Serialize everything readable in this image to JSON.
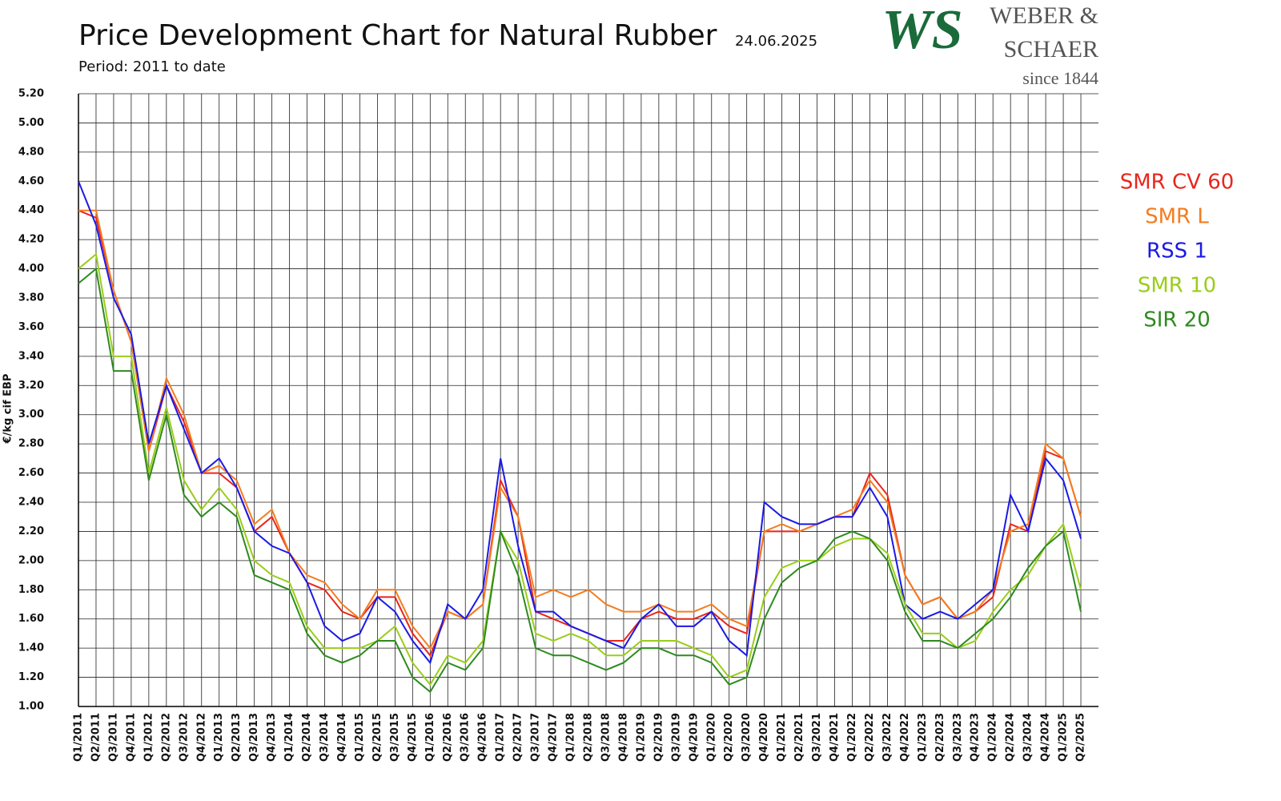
{
  "chart_data": {
    "type": "line",
    "title": "Price Development Chart for Natural Rubber",
    "date": "24.06.2025",
    "subtitle": "Period: 2011 to date",
    "y_label": "€/kg cif EBP",
    "logo": {
      "mark": "WS",
      "line1": "WEBER &",
      "line2": "SCHAER",
      "line3": "since 1844"
    },
    "grid": true,
    "legend_position": "right",
    "categories": [
      "Q1/2011",
      "Q2/2011",
      "Q3/2011",
      "Q4/2011",
      "Q1/2012",
      "Q2/2012",
      "Q3/2012",
      "Q4/2012",
      "Q1/2013",
      "Q2/2013",
      "Q3/2013",
      "Q4/2013",
      "Q1/2014",
      "Q2/2014",
      "Q3/2014",
      "Q4/2014",
      "Q1/2015",
      "Q2/2015",
      "Q3/2015",
      "Q4/2015",
      "Q1/2016",
      "Q2/2016",
      "Q3/2016",
      "Q4/2016",
      "Q1/2017",
      "Q2/2017",
      "Q3/2017",
      "Q4/2017",
      "Q1/2018",
      "Q2/2018",
      "Q3/2018",
      "Q4/2018",
      "Q1/2019",
      "Q2/2019",
      "Q3/2019",
      "Q4/2019",
      "Q1/2020",
      "Q2/2020",
      "Q3/2020",
      "Q4/2020",
      "Q1/2021",
      "Q2/2021",
      "Q3/2021",
      "Q4/2021",
      "Q1/2022",
      "Q2/2022",
      "Q3/2022",
      "Q4/2022",
      "Q1/2023",
      "Q2/2023",
      "Q3/2023",
      "Q4/2023",
      "Q1/2024",
      "Q2/2024",
      "Q3/2024",
      "Q4/2024",
      "Q1/2025",
      "Q2/2025"
    ],
    "ylim": [
      1.0,
      5.2
    ],
    "yticks": [
      {
        "value": 1.0,
        "label": "1.00"
      },
      {
        "value": 1.2,
        "label": "1.20"
      },
      {
        "value": 1.4,
        "label": "1.40"
      },
      {
        "value": 1.6,
        "label": "1.60"
      },
      {
        "value": 1.8,
        "label": "1.80"
      },
      {
        "value": 2.0,
        "label": "2.00"
      },
      {
        "value": 2.2,
        "label": "2.20"
      },
      {
        "value": 2.4,
        "label": "2.40"
      },
      {
        "value": 2.6,
        "label": "2.60"
      },
      {
        "value": 2.8,
        "label": "2.80"
      },
      {
        "value": 3.0,
        "label": "3.00"
      },
      {
        "value": 3.2,
        "label": "3.20"
      },
      {
        "value": 3.4,
        "label": "3.40"
      },
      {
        "value": 3.6,
        "label": "3.60"
      },
      {
        "value": 3.8,
        "label": "3.80"
      },
      {
        "value": 4.0,
        "label": "4.00"
      },
      {
        "value": 4.2,
        "label": "4.20"
      },
      {
        "value": 4.4,
        "label": "4.40"
      },
      {
        "value": 4.6,
        "label": "4.60"
      },
      {
        "value": 4.8,
        "label": "4.80"
      },
      {
        "value": 5.0,
        "label": "5.00"
      },
      {
        "value": 5.2,
        "label": "5.20"
      }
    ],
    "series": [
      {
        "name": "SMR CV 60",
        "color": "#e8261c",
        "values": [
          4.4,
          4.35,
          3.85,
          3.5,
          2.75,
          3.2,
          2.95,
          2.6,
          2.6,
          2.5,
          2.2,
          2.3,
          2.05,
          1.85,
          1.8,
          1.65,
          1.6,
          1.75,
          1.75,
          1.5,
          1.35,
          1.65,
          1.6,
          1.7,
          2.55,
          2.3,
          1.65,
          1.6,
          1.55,
          1.5,
          1.45,
          1.45,
          1.6,
          1.65,
          1.6,
          1.6,
          1.65,
          1.55,
          1.5,
          2.2,
          2.2,
          2.2,
          2.25,
          2.3,
          2.3,
          2.6,
          2.45,
          1.9,
          1.7,
          1.75,
          1.6,
          1.65,
          1.75,
          2.25,
          2.2,
          2.75,
          2.7,
          2.3
        ]
      },
      {
        "name": "SMR L",
        "color": "#f57c1f",
        "values": [
          4.4,
          4.4,
          3.85,
          3.5,
          2.75,
          3.25,
          3.0,
          2.6,
          2.65,
          2.55,
          2.25,
          2.35,
          2.05,
          1.9,
          1.85,
          1.7,
          1.6,
          1.8,
          1.8,
          1.55,
          1.4,
          1.65,
          1.6,
          1.7,
          2.5,
          2.3,
          1.75,
          1.8,
          1.75,
          1.8,
          1.7,
          1.65,
          1.65,
          1.7,
          1.65,
          1.65,
          1.7,
          1.6,
          1.55,
          2.2,
          2.25,
          2.2,
          2.25,
          2.3,
          2.35,
          2.55,
          2.4,
          1.9,
          1.7,
          1.75,
          1.6,
          1.65,
          1.8,
          2.2,
          2.25,
          2.8,
          2.7,
          2.3
        ]
      },
      {
        "name": "RSS 1",
        "color": "#1a1ae6",
        "values": [
          4.6,
          4.3,
          3.8,
          3.55,
          2.8,
          3.2,
          2.9,
          2.6,
          2.7,
          2.5,
          2.2,
          2.1,
          2.05,
          1.85,
          1.55,
          1.45,
          1.5,
          1.75,
          1.65,
          1.45,
          1.3,
          1.7,
          1.6,
          1.8,
          2.7,
          2.1,
          1.65,
          1.65,
          1.55,
          1.5,
          1.45,
          1.4,
          1.6,
          1.7,
          1.55,
          1.55,
          1.65,
          1.45,
          1.35,
          2.4,
          2.3,
          2.25,
          2.25,
          2.3,
          2.3,
          2.5,
          2.3,
          1.7,
          1.6,
          1.65,
          1.6,
          1.7,
          1.8,
          2.45,
          2.2,
          2.7,
          2.55,
          2.15
        ]
      },
      {
        "name": "SMR 10",
        "color": "#9acd1a",
        "values": [
          4.0,
          4.1,
          3.4,
          3.4,
          2.6,
          3.05,
          2.55,
          2.35,
          2.5,
          2.35,
          2.0,
          1.9,
          1.85,
          1.55,
          1.4,
          1.4,
          1.4,
          1.45,
          1.55,
          1.3,
          1.15,
          1.35,
          1.3,
          1.45,
          2.2,
          2.0,
          1.5,
          1.45,
          1.5,
          1.45,
          1.35,
          1.35,
          1.45,
          1.45,
          1.45,
          1.4,
          1.35,
          1.2,
          1.25,
          1.75,
          1.95,
          2.0,
          2.0,
          2.1,
          2.15,
          2.15,
          2.05,
          1.7,
          1.5,
          1.5,
          1.4,
          1.45,
          1.65,
          1.8,
          1.9,
          2.1,
          2.25,
          1.8
        ]
      },
      {
        "name": "SIR 20",
        "color": "#2e8b1e",
        "values": [
          3.9,
          4.0,
          3.3,
          3.3,
          2.55,
          3.0,
          2.45,
          2.3,
          2.4,
          2.3,
          1.9,
          1.85,
          1.8,
          1.5,
          1.35,
          1.3,
          1.35,
          1.45,
          1.45,
          1.2,
          1.1,
          1.3,
          1.25,
          1.4,
          2.2,
          1.9,
          1.4,
          1.35,
          1.35,
          1.3,
          1.25,
          1.3,
          1.4,
          1.4,
          1.35,
          1.35,
          1.3,
          1.15,
          1.2,
          1.6,
          1.85,
          1.95,
          2.0,
          2.15,
          2.2,
          2.15,
          2.0,
          1.65,
          1.45,
          1.45,
          1.4,
          1.5,
          1.6,
          1.75,
          1.95,
          2.1,
          2.2,
          1.65
        ]
      }
    ]
  }
}
